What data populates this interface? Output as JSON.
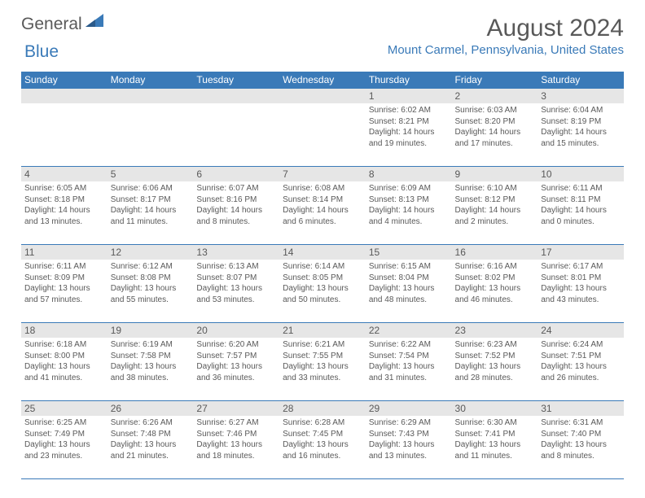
{
  "logo": {
    "word1": "General",
    "word2": "Blue"
  },
  "title": "August 2024",
  "location": "Mount Carmel, Pennsylvania, United States",
  "dayNames": [
    "Sunday",
    "Monday",
    "Tuesday",
    "Wednesday",
    "Thursday",
    "Friday",
    "Saturday"
  ],
  "colors": {
    "header_bg": "#3a7ab8",
    "header_text": "#ffffff",
    "daynum_bg": "#e6e6e6",
    "text": "#595959",
    "accent": "#3a7ab8"
  },
  "weeks": [
    [
      {
        "num": "",
        "sunrise": "",
        "sunset": "",
        "daylight": ""
      },
      {
        "num": "",
        "sunrise": "",
        "sunset": "",
        "daylight": ""
      },
      {
        "num": "",
        "sunrise": "",
        "sunset": "",
        "daylight": ""
      },
      {
        "num": "",
        "sunrise": "",
        "sunset": "",
        "daylight": ""
      },
      {
        "num": "1",
        "sunrise": "Sunrise: 6:02 AM",
        "sunset": "Sunset: 8:21 PM",
        "daylight": "Daylight: 14 hours and 19 minutes."
      },
      {
        "num": "2",
        "sunrise": "Sunrise: 6:03 AM",
        "sunset": "Sunset: 8:20 PM",
        "daylight": "Daylight: 14 hours and 17 minutes."
      },
      {
        "num": "3",
        "sunrise": "Sunrise: 6:04 AM",
        "sunset": "Sunset: 8:19 PM",
        "daylight": "Daylight: 14 hours and 15 minutes."
      }
    ],
    [
      {
        "num": "4",
        "sunrise": "Sunrise: 6:05 AM",
        "sunset": "Sunset: 8:18 PM",
        "daylight": "Daylight: 14 hours and 13 minutes."
      },
      {
        "num": "5",
        "sunrise": "Sunrise: 6:06 AM",
        "sunset": "Sunset: 8:17 PM",
        "daylight": "Daylight: 14 hours and 11 minutes."
      },
      {
        "num": "6",
        "sunrise": "Sunrise: 6:07 AM",
        "sunset": "Sunset: 8:16 PM",
        "daylight": "Daylight: 14 hours and 8 minutes."
      },
      {
        "num": "7",
        "sunrise": "Sunrise: 6:08 AM",
        "sunset": "Sunset: 8:14 PM",
        "daylight": "Daylight: 14 hours and 6 minutes."
      },
      {
        "num": "8",
        "sunrise": "Sunrise: 6:09 AM",
        "sunset": "Sunset: 8:13 PM",
        "daylight": "Daylight: 14 hours and 4 minutes."
      },
      {
        "num": "9",
        "sunrise": "Sunrise: 6:10 AM",
        "sunset": "Sunset: 8:12 PM",
        "daylight": "Daylight: 14 hours and 2 minutes."
      },
      {
        "num": "10",
        "sunrise": "Sunrise: 6:11 AM",
        "sunset": "Sunset: 8:11 PM",
        "daylight": "Daylight: 14 hours and 0 minutes."
      }
    ],
    [
      {
        "num": "11",
        "sunrise": "Sunrise: 6:11 AM",
        "sunset": "Sunset: 8:09 PM",
        "daylight": "Daylight: 13 hours and 57 minutes."
      },
      {
        "num": "12",
        "sunrise": "Sunrise: 6:12 AM",
        "sunset": "Sunset: 8:08 PM",
        "daylight": "Daylight: 13 hours and 55 minutes."
      },
      {
        "num": "13",
        "sunrise": "Sunrise: 6:13 AM",
        "sunset": "Sunset: 8:07 PM",
        "daylight": "Daylight: 13 hours and 53 minutes."
      },
      {
        "num": "14",
        "sunrise": "Sunrise: 6:14 AM",
        "sunset": "Sunset: 8:05 PM",
        "daylight": "Daylight: 13 hours and 50 minutes."
      },
      {
        "num": "15",
        "sunrise": "Sunrise: 6:15 AM",
        "sunset": "Sunset: 8:04 PM",
        "daylight": "Daylight: 13 hours and 48 minutes."
      },
      {
        "num": "16",
        "sunrise": "Sunrise: 6:16 AM",
        "sunset": "Sunset: 8:02 PM",
        "daylight": "Daylight: 13 hours and 46 minutes."
      },
      {
        "num": "17",
        "sunrise": "Sunrise: 6:17 AM",
        "sunset": "Sunset: 8:01 PM",
        "daylight": "Daylight: 13 hours and 43 minutes."
      }
    ],
    [
      {
        "num": "18",
        "sunrise": "Sunrise: 6:18 AM",
        "sunset": "Sunset: 8:00 PM",
        "daylight": "Daylight: 13 hours and 41 minutes."
      },
      {
        "num": "19",
        "sunrise": "Sunrise: 6:19 AM",
        "sunset": "Sunset: 7:58 PM",
        "daylight": "Daylight: 13 hours and 38 minutes."
      },
      {
        "num": "20",
        "sunrise": "Sunrise: 6:20 AM",
        "sunset": "Sunset: 7:57 PM",
        "daylight": "Daylight: 13 hours and 36 minutes."
      },
      {
        "num": "21",
        "sunrise": "Sunrise: 6:21 AM",
        "sunset": "Sunset: 7:55 PM",
        "daylight": "Daylight: 13 hours and 33 minutes."
      },
      {
        "num": "22",
        "sunrise": "Sunrise: 6:22 AM",
        "sunset": "Sunset: 7:54 PM",
        "daylight": "Daylight: 13 hours and 31 minutes."
      },
      {
        "num": "23",
        "sunrise": "Sunrise: 6:23 AM",
        "sunset": "Sunset: 7:52 PM",
        "daylight": "Daylight: 13 hours and 28 minutes."
      },
      {
        "num": "24",
        "sunrise": "Sunrise: 6:24 AM",
        "sunset": "Sunset: 7:51 PM",
        "daylight": "Daylight: 13 hours and 26 minutes."
      }
    ],
    [
      {
        "num": "25",
        "sunrise": "Sunrise: 6:25 AM",
        "sunset": "Sunset: 7:49 PM",
        "daylight": "Daylight: 13 hours and 23 minutes."
      },
      {
        "num": "26",
        "sunrise": "Sunrise: 6:26 AM",
        "sunset": "Sunset: 7:48 PM",
        "daylight": "Daylight: 13 hours and 21 minutes."
      },
      {
        "num": "27",
        "sunrise": "Sunrise: 6:27 AM",
        "sunset": "Sunset: 7:46 PM",
        "daylight": "Daylight: 13 hours and 18 minutes."
      },
      {
        "num": "28",
        "sunrise": "Sunrise: 6:28 AM",
        "sunset": "Sunset: 7:45 PM",
        "daylight": "Daylight: 13 hours and 16 minutes."
      },
      {
        "num": "29",
        "sunrise": "Sunrise: 6:29 AM",
        "sunset": "Sunset: 7:43 PM",
        "daylight": "Daylight: 13 hours and 13 minutes."
      },
      {
        "num": "30",
        "sunrise": "Sunrise: 6:30 AM",
        "sunset": "Sunset: 7:41 PM",
        "daylight": "Daylight: 13 hours and 11 minutes."
      },
      {
        "num": "31",
        "sunrise": "Sunrise: 6:31 AM",
        "sunset": "Sunset: 7:40 PM",
        "daylight": "Daylight: 13 hours and 8 minutes."
      }
    ]
  ]
}
